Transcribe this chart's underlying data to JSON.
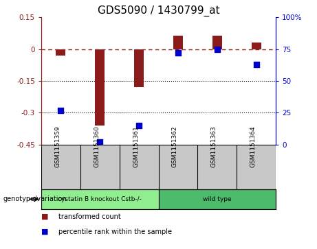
{
  "title": "GDS5090 / 1430799_at",
  "samples": [
    "GSM1151359",
    "GSM1151360",
    "GSM1151361",
    "GSM1151362",
    "GSM1151363",
    "GSM1151364"
  ],
  "bar_values": [
    -0.03,
    -0.36,
    -0.18,
    0.065,
    0.065,
    0.03
  ],
  "percentile_right": [
    27,
    2,
    15,
    72,
    75,
    63
  ],
  "ylim": [
    -0.45,
    0.15
  ],
  "y2lim": [
    0,
    100
  ],
  "yticks": [
    -0.45,
    -0.3,
    -0.15,
    0.0,
    0.15
  ],
  "y2ticks": [
    0,
    25,
    50,
    75,
    100
  ],
  "ytick_labels": [
    "-0.45",
    "-0.3",
    "-0.15",
    "0",
    "0.15"
  ],
  "y2tick_labels": [
    "0",
    "25",
    "50",
    "75",
    "100%"
  ],
  "hlines": [
    -0.15,
    -0.3
  ],
  "dashed_line": 0.0,
  "bar_color": "#8B1A1A",
  "dot_color": "#0000CD",
  "bg_color": "#ffffff",
  "plot_bg": "#ffffff",
  "sample_label_bg": "#c8c8c8",
  "genotype_groups": [
    {
      "label": "cystatin B knockout Cstb-/-",
      "start": 0,
      "end": 3,
      "color": "#90EE90"
    },
    {
      "label": "wild type",
      "start": 3,
      "end": 6,
      "color": "#4CBB6C"
    }
  ],
  "legend_items": [
    {
      "label": "transformed count",
      "color": "#8B1A1A"
    },
    {
      "label": "percentile rank within the sample",
      "color": "#0000CD"
    }
  ],
  "genotype_label": "genotype/variation",
  "title_fontsize": 11,
  "tick_fontsize": 7.5,
  "label_fontsize": 6.5,
  "bar_width": 0.25,
  "dot_size": 30
}
